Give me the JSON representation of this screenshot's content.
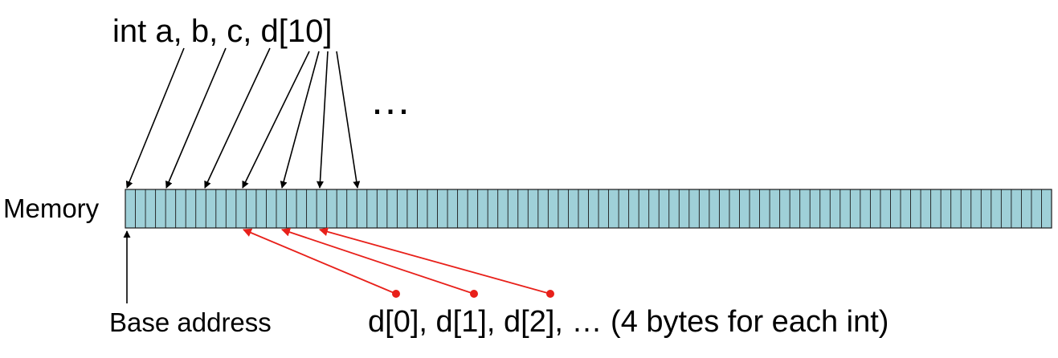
{
  "declaration": "int  a, b, c, d[10]",
  "ellipsis": "…",
  "memory_label": "Memory",
  "base_address_label": "Base address",
  "elements_label": "d[0], d[1], d[2], … (4 bytes for each int)",
  "memory": {
    "cell_count": 92,
    "fill_color": "#9fd0d8",
    "stroke_color": "#1a1a1a"
  },
  "pointer_color": "#000000",
  "element_pointer_color": "#e8201a"
}
